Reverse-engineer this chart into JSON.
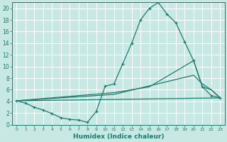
{
  "xlabel": "Humidex (Indice chaleur)",
  "bg_color": "#c8e8e4",
  "grid_color": "#ffffff",
  "line_color": "#1e7a6e",
  "xlim": [
    -0.5,
    23.5
  ],
  "ylim": [
    0,
    21
  ],
  "xticks": [
    0,
    1,
    2,
    3,
    4,
    5,
    6,
    7,
    8,
    9,
    10,
    11,
    12,
    13,
    14,
    15,
    16,
    17,
    18,
    19,
    20,
    21,
    22,
    23
  ],
  "yticks": [
    0,
    2,
    4,
    6,
    8,
    10,
    12,
    14,
    16,
    18,
    20
  ],
  "line1_x": [
    0,
    1,
    2,
    3,
    4,
    5,
    6,
    7,
    8,
    9,
    10,
    11,
    12,
    13,
    14,
    15,
    16,
    17,
    18,
    19,
    20,
    21,
    22,
    23
  ],
  "line1_y": [
    4.1,
    3.7,
    3.0,
    2.5,
    1.9,
    1.2,
    0.9,
    0.8,
    0.4,
    2.3,
    6.6,
    7.0,
    10.5,
    14.0,
    18.0,
    20.0,
    21.0,
    19.0,
    17.5,
    14.2,
    11.0,
    6.5,
    5.0,
    4.6
  ],
  "line2_x": [
    0,
    11,
    15,
    20,
    21,
    22,
    23
  ],
  "line2_y": [
    4.1,
    5.5,
    6.5,
    11.0,
    6.5,
    6.0,
    4.6
  ],
  "line3_x": [
    0,
    11,
    20,
    21,
    22,
    23
  ],
  "line3_y": [
    4.1,
    5.2,
    8.5,
    7.0,
    6.0,
    4.6
  ],
  "line4_x": [
    0,
    23
  ],
  "line4_y": [
    4.1,
    4.6
  ]
}
